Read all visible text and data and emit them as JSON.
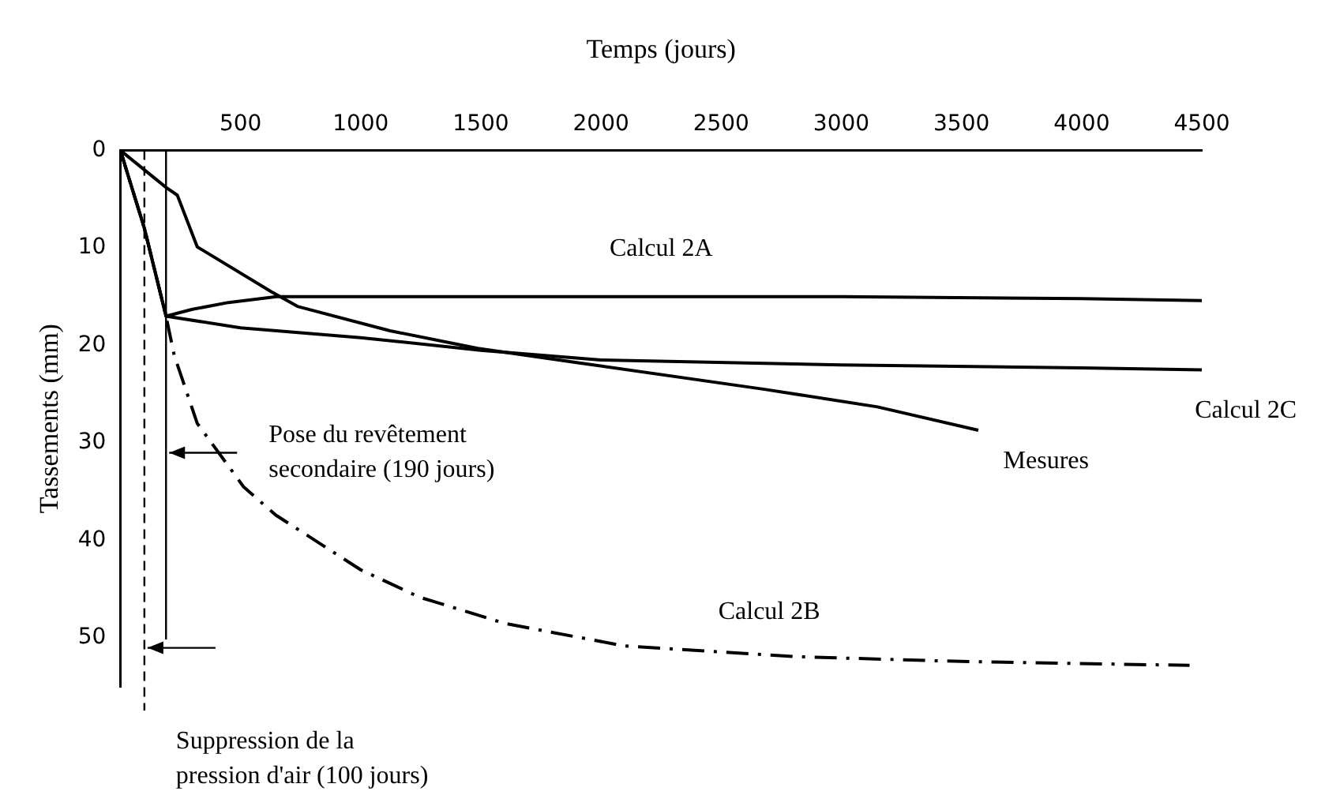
{
  "chart_data": {
    "type": "line",
    "xlabel": "Temps (jours)",
    "ylabel": "Tassements (mm)",
    "xlim": [
      0,
      4500
    ],
    "xticks": [
      500,
      1000,
      1500,
      2000,
      2500,
      3000,
      3500,
      4000,
      4500
    ],
    "ylim": [
      55,
      0
    ],
    "yticks": [
      0,
      10,
      20,
      30,
      40,
      50
    ],
    "grid": false,
    "legend": false,
    "marker": "none",
    "series": [
      {
        "name": "Calcul 2A",
        "color": "#000000",
        "line_style": "solid",
        "x": [
          0,
          100,
          190,
          300,
          450,
          650,
          1000,
          2000,
          3000,
          4000,
          4500
        ],
        "values": [
          0,
          8,
          17,
          16.3,
          15.6,
          15,
          15,
          15,
          15,
          15.2,
          15.4
        ]
      },
      {
        "name": "Calcul 2B",
        "color": "#000000",
        "line_style": "dashed",
        "x": [
          0,
          100,
          190,
          224,
          320,
          513,
          647,
          1000,
          1244,
          1600,
          2096,
          2801,
          3500,
          4449
        ],
        "values": [
          0,
          8,
          17,
          21,
          28,
          34.5,
          37.4,
          43,
          45.8,
          48.5,
          50.8,
          51.9,
          52.4,
          52.8
        ]
      },
      {
        "name": "Calcul 2C",
        "color": "#000000",
        "line_style": "solid",
        "x": [
          0,
          100,
          190,
          500,
          1000,
          1500,
          2000,
          3000,
          4000,
          4500
        ],
        "values": [
          0,
          8,
          17,
          18.2,
          19.2,
          20.5,
          21.5,
          22,
          22.3,
          22.5
        ]
      },
      {
        "name": "Mesures",
        "color": "#000000",
        "line_style": "solid",
        "x": [
          0,
          190,
          237,
          320,
          628,
          737,
          1122,
          1487,
          1910,
          2680,
          3150,
          3570
        ],
        "values": [
          0,
          3.8,
          4.6,
          9.9,
          14.5,
          16,
          18.5,
          20.3,
          21.8,
          24.5,
          26.3,
          28.7
        ]
      }
    ],
    "ref_lines": [
      {
        "axis": "x",
        "value": 100,
        "label": "Suppression de la\npression d'air (100 jours)",
        "line_style": "dashed",
        "color": "#000000"
      },
      {
        "axis": "x",
        "value": 190,
        "label": "Pose du revêtement\nsecondaire (190 jours)",
        "line_style": "solid",
        "color": "#000000"
      }
    ]
  }
}
